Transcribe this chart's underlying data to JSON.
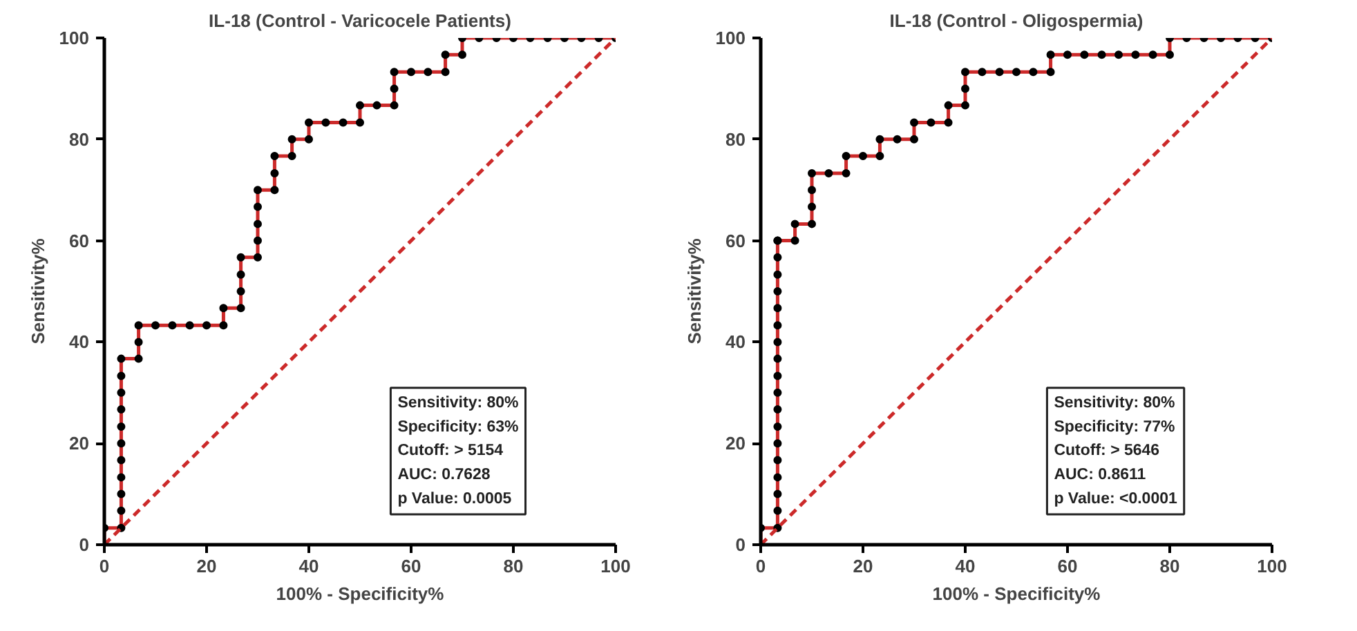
{
  "chart_data": [
    {
      "type": "line",
      "title": "IL-18 (Control - Varicocele Patients)",
      "xlabel": "100% - Specificity%",
      "ylabel": "Sensitivity%",
      "xlim": [
        0,
        100
      ],
      "ylim": [
        0,
        100
      ],
      "xticks": [
        0,
        20,
        40,
        60,
        80,
        100
      ],
      "yticks": [
        0,
        20,
        40,
        60,
        80,
        100
      ],
      "grid": false,
      "marker": "circle",
      "annotations": [
        "Sensitivity: 80%",
        "Specificity: 63%",
        "Cutoff: > 5154",
        "AUC: 0.7628",
        "p Value: 0.0005"
      ],
      "series": [
        {
          "color": "#cc2a2a",
          "x": [
            0,
            0,
            3.3,
            3.3,
            3.3,
            3.3,
            3.3,
            3.3,
            3.3,
            3.3,
            3.3,
            3.3,
            3.3,
            6.7,
            6.7,
            6.7,
            10,
            13.3,
            16.7,
            20,
            23.3,
            23.3,
            26.7,
            26.7,
            26.7,
            26.7,
            30,
            30,
            30,
            30,
            30,
            33.3,
            33.3,
            33.3,
            36.7,
            36.7,
            40,
            40,
            43.3,
            46.7,
            50,
            50,
            53.3,
            56.7,
            56.7,
            56.7,
            60,
            63.3,
            66.7,
            66.7,
            70,
            70,
            73.3,
            76.7,
            80,
            83.3,
            86.7,
            90,
            93.3,
            96.7,
            100
          ],
          "values": [
            0,
            3.3,
            3.3,
            6.7,
            10,
            13.3,
            16.7,
            20,
            23.3,
            26.7,
            30,
            33.3,
            36.7,
            36.7,
            40,
            43.3,
            43.3,
            43.3,
            43.3,
            43.3,
            43.3,
            46.7,
            46.7,
            50,
            53.3,
            56.7,
            56.7,
            60,
            63.3,
            66.7,
            70,
            70,
            73.3,
            76.7,
            76.7,
            80,
            80,
            83.3,
            83.3,
            83.3,
            83.3,
            86.7,
            86.7,
            86.7,
            90,
            93.3,
            93.3,
            93.3,
            93.3,
            96.7,
            96.7,
            100,
            100,
            100,
            100,
            100,
            100,
            100,
            100,
            100,
            100
          ]
        },
        {
          "color": "#cc2a2a",
          "x": [
            0,
            100
          ],
          "values": [
            0,
            100
          ],
          "line_style": "dashed",
          "marker": "none"
        }
      ]
    },
    {
      "type": "line",
      "title": "IL-18 (Control - Oligospermia)",
      "xlabel": "100% - Specificity%",
      "ylabel": "Sensitivity%",
      "xlim": [
        0,
        100
      ],
      "ylim": [
        0,
        100
      ],
      "xticks": [
        0,
        20,
        40,
        60,
        80,
        100
      ],
      "yticks": [
        0,
        20,
        40,
        60,
        80,
        100
      ],
      "grid": false,
      "marker": "circle",
      "annotations": [
        "Sensitivity: 80%",
        "Specificity: 77%",
        "Cutoff: > 5646",
        "AUC: 0.8611",
        "p Value: <0.0001"
      ],
      "series": [
        {
          "color": "#cc2a2a",
          "x": [
            0,
            0,
            3.3,
            3.3,
            3.3,
            3.3,
            3.3,
            3.3,
            3.3,
            3.3,
            3.3,
            3.3,
            3.3,
            3.3,
            3.3,
            3.3,
            3.3,
            3.3,
            3.3,
            3.3,
            3.3,
            6.7,
            6.7,
            10,
            10,
            10,
            10,
            13.3,
            16.7,
            16.7,
            20,
            23.3,
            23.3,
            26.7,
            30,
            30,
            33.3,
            36.7,
            36.7,
            40,
            40,
            40,
            43.3,
            46.7,
            50,
            53.3,
            56.7,
            56.7,
            60,
            63.3,
            66.7,
            70,
            73.3,
            76.7,
            80,
            80,
            83.3,
            86.7,
            90,
            93.3,
            96.7,
            100
          ],
          "values": [
            0,
            3.3,
            3.3,
            6.7,
            10,
            13.3,
            16.7,
            20,
            23.3,
            26.7,
            30,
            33.3,
            36.7,
            40,
            43.3,
            46.7,
            50,
            53.3,
            56.7,
            60,
            60,
            60,
            63.3,
            63.3,
            66.7,
            70,
            73.3,
            73.3,
            73.3,
            76.7,
            76.7,
            76.7,
            80,
            80,
            80,
            83.3,
            83.3,
            83.3,
            86.7,
            86.7,
            90,
            93.3,
            93.3,
            93.3,
            93.3,
            93.3,
            93.3,
            96.7,
            96.7,
            96.7,
            96.7,
            96.7,
            96.7,
            96.7,
            96.7,
            100,
            100,
            100,
            100,
            100,
            100,
            100
          ]
        },
        {
          "color": "#cc2a2a",
          "x": [
            0,
            100
          ],
          "values": [
            0,
            100
          ],
          "line_style": "dashed",
          "marker": "none"
        }
      ]
    }
  ]
}
